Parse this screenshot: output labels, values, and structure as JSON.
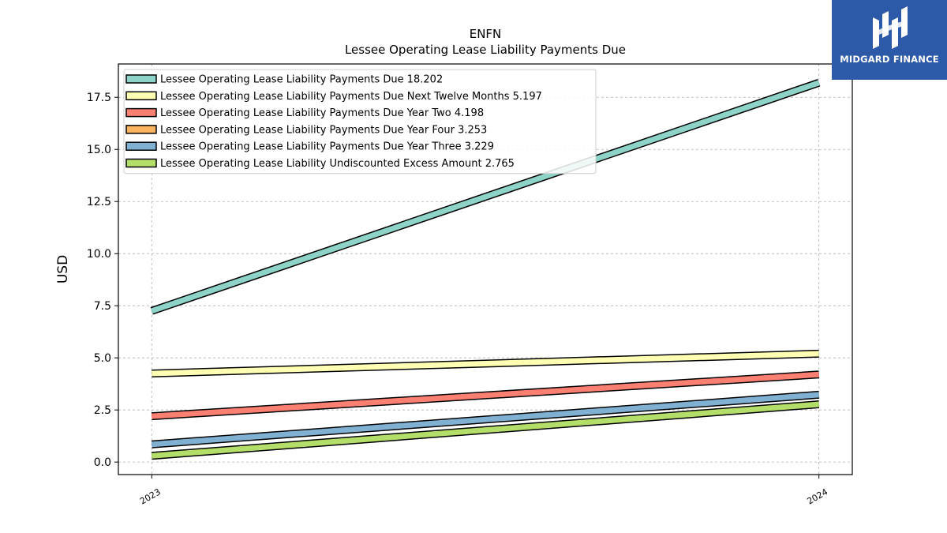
{
  "brand": {
    "name": "MIDGARD FINANCE",
    "logo_icon": "midgard-logo-icon",
    "color": "#2d5aa8"
  },
  "chart_data": {
    "type": "line",
    "title": "ENFN",
    "subtitle": "Lessee Operating Lease Liability Payments Due",
    "xlabel": "",
    "ylabel": "USD",
    "x": [
      "2023",
      "2024"
    ],
    "xlim": [
      2022.95,
      2024.05
    ],
    "ylim": [
      -0.6,
      19.1
    ],
    "yticks": [
      0.0,
      2.5,
      5.0,
      7.5,
      10.0,
      12.5,
      15.0,
      17.5
    ],
    "ytick_labels": [
      "0.0",
      "2.5",
      "5.0",
      "7.5",
      "10.0",
      "12.5",
      "15.0",
      "17.5"
    ],
    "grid": true,
    "legend_position": "top-left",
    "series": [
      {
        "name": "Lessee Operating Lease Liability Payments Due",
        "legend_value": "18.202",
        "values": [
          7.25,
          18.2
        ],
        "color": "#8dd3c7"
      },
      {
        "name": "Lessee Operating Lease Liability Payments Due Next Twelve Months",
        "legend_value": "5.197",
        "values": [
          4.25,
          5.2
        ],
        "color": "#ffffb3"
      },
      {
        "name": "Lessee Operating Lease Liability Payments Due Year Two",
        "legend_value": "4.198",
        "values": [
          2.2,
          4.2
        ],
        "color": "#fb8072"
      },
      {
        "name": "Lessee Operating Lease Liability Payments Due Year Four",
        "legend_value": "3.253",
        "values": [
          null,
          3.25
        ],
        "color": "#fdb462"
      },
      {
        "name": "Lessee Operating Lease Liability Payments Due Year Three",
        "legend_value": "3.229",
        "values": [
          0.85,
          3.23
        ],
        "color": "#80b1d3"
      },
      {
        "name": "Lessee Operating Lease Liability Undiscounted Excess Amount",
        "legend_value": "2.765",
        "values": [
          0.3,
          2.77
        ],
        "color": "#b3de69"
      }
    ]
  }
}
